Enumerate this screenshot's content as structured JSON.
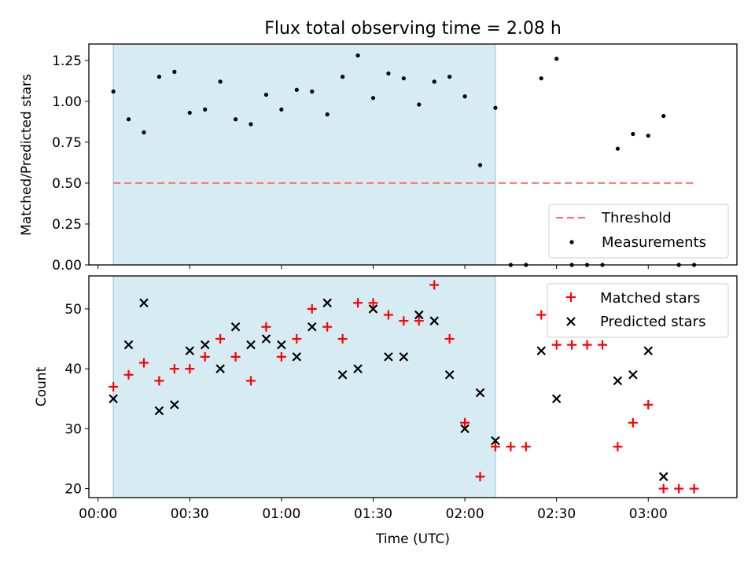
{
  "chart_data": [
    {
      "type": "scatter",
      "title": "Flux total observing time = 2.08 h",
      "xlabel": "",
      "ylabel": "Matched/Predicted stars",
      "ylim": [
        0,
        1.35
      ],
      "yticks": [
        "0.00",
        "0.25",
        "0.50",
        "0.75",
        "1.00",
        "1.25"
      ],
      "shaded_span": [
        "00:05",
        "02:10"
      ],
      "shaded_color": "#add8e6",
      "threshold": {
        "name": "Threshold",
        "value": 0.5,
        "from": "00:05",
        "to": "03:15",
        "color": "#ff7070"
      },
      "legend": {
        "position": "lower right",
        "entries": [
          "Threshold",
          "Measurements"
        ]
      },
      "series": [
        {
          "name": "Measurements",
          "color": "#000000",
          "x": [
            "00:05",
            "00:10",
            "00:15",
            "00:20",
            "00:25",
            "00:30",
            "00:35",
            "00:40",
            "00:45",
            "00:50",
            "00:55",
            "01:00",
            "01:05",
            "01:10",
            "01:15",
            "01:20",
            "01:25",
            "01:30",
            "01:35",
            "01:40",
            "01:45",
            "01:50",
            "01:55",
            "02:00",
            "02:05",
            "02:10",
            "02:15",
            "02:20",
            "02:25",
            "02:30",
            "02:35",
            "02:40",
            "02:45",
            "02:50",
            "02:55",
            "03:00",
            "03:05",
            "03:10",
            "03:15"
          ],
          "y": [
            1.06,
            0.89,
            0.81,
            1.15,
            1.18,
            0.93,
            0.95,
            1.12,
            0.89,
            0.86,
            1.04,
            0.95,
            1.07,
            1.06,
            0.92,
            1.15,
            1.28,
            1.02,
            1.17,
            1.14,
            0.98,
            1.12,
            1.15,
            1.03,
            0.61,
            0.96,
            0,
            0,
            1.14,
            1.26,
            0,
            0,
            0,
            0.71,
            0.8,
            0.79,
            0.91,
            0,
            0
          ]
        }
      ]
    },
    {
      "type": "scatter",
      "xlabel": "Time (UTC)",
      "ylabel": "Count",
      "ylim": [
        18.5,
        55.5
      ],
      "yticks": [
        "20",
        "30",
        "40",
        "50"
      ],
      "xlim": [
        "-00:03",
        "03:29"
      ],
      "xticks": [
        "00:00",
        "00:30",
        "01:00",
        "01:30",
        "02:00",
        "02:30",
        "03:00"
      ],
      "shaded_span": [
        "00:05",
        "02:10"
      ],
      "legend": {
        "position": "upper right",
        "entries": [
          "Matched stars",
          "Predicted stars"
        ]
      },
      "series": [
        {
          "name": "Matched stars",
          "marker": "+",
          "color": "#ff0000",
          "x": [
            "00:05",
            "00:10",
            "00:15",
            "00:20",
            "00:25",
            "00:30",
            "00:35",
            "00:40",
            "00:45",
            "00:50",
            "00:55",
            "01:00",
            "01:05",
            "01:10",
            "01:15",
            "01:20",
            "01:25",
            "01:30",
            "01:35",
            "01:40",
            "01:45",
            "01:50",
            "01:55",
            "02:00",
            "02:05",
            "02:10",
            "02:15",
            "02:20",
            "02:25",
            "02:30",
            "02:35",
            "02:40",
            "02:45",
            "02:50",
            "02:55",
            "03:00",
            "03:05",
            "03:10",
            "03:15"
          ],
          "y": [
            37,
            39,
            41,
            38,
            40,
            40,
            42,
            45,
            42,
            38,
            47,
            42,
            45,
            50,
            47,
            45,
            51,
            51,
            49,
            48,
            48,
            54,
            45,
            31,
            22,
            27,
            27,
            27,
            49,
            44,
            44,
            44,
            44,
            27,
            31,
            34,
            20,
            20,
            20
          ]
        },
        {
          "name": "Predicted stars",
          "marker": "x",
          "color": "#000000",
          "x": [
            "00:05",
            "00:10",
            "00:15",
            "00:20",
            "00:25",
            "00:30",
            "00:35",
            "00:40",
            "00:45",
            "00:50",
            "00:55",
            "01:00",
            "01:05",
            "01:10",
            "01:15",
            "01:20",
            "01:25",
            "01:30",
            "01:35",
            "01:40",
            "01:45",
            "01:50",
            "01:55",
            "02:00",
            "02:05",
            "02:10",
            "02:25",
            "02:30",
            "02:50",
            "02:55",
            "03:00",
            "03:05"
          ],
          "y": [
            35,
            44,
            51,
            33,
            34,
            43,
            44,
            40,
            47,
            44,
            45,
            44,
            42,
            47,
            51,
            39,
            40,
            50,
            42,
            42,
            49,
            48,
            39,
            30,
            36,
            28,
            43,
            35,
            38,
            39,
            43,
            22
          ]
        }
      ]
    }
  ]
}
